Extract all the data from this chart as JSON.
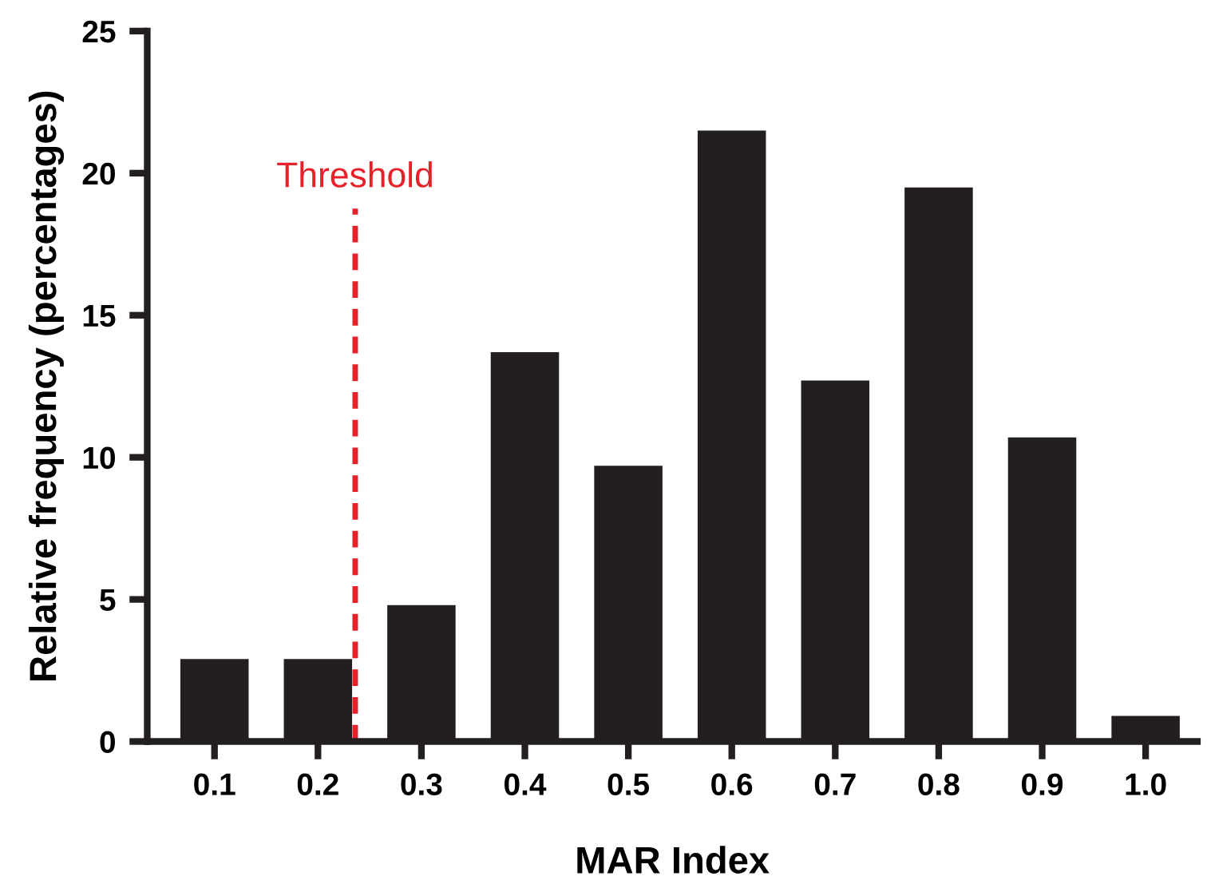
{
  "chart_data": {
    "type": "bar",
    "xlabel": "MAR Index",
    "ylabel": "Relative frequency (percentages)",
    "x": [
      0.1,
      0.2,
      0.3,
      0.4,
      0.5,
      0.6,
      0.7,
      0.8,
      0.9,
      1.0
    ],
    "values": [
      2.9,
      2.9,
      4.8,
      13.7,
      9.7,
      21.5,
      12.7,
      19.5,
      10.7,
      0.9
    ],
    "color": "#231f20",
    "xlim": [
      0.035,
      1.05
    ],
    "xticks": [
      {
        "value": 0.1,
        "label": "0.1"
      },
      {
        "value": 0.2,
        "label": "0.2"
      },
      {
        "value": 0.3,
        "label": "0.3"
      },
      {
        "value": 0.4,
        "label": "0.4"
      },
      {
        "value": 0.5,
        "label": "0.5"
      },
      {
        "value": 0.6,
        "label": "0.6"
      },
      {
        "value": 0.7,
        "label": "0.7"
      },
      {
        "value": 0.8,
        "label": "0.8"
      },
      {
        "value": 0.9,
        "label": "0.9"
      },
      {
        "value": 1.0,
        "label": "1.0"
      }
    ],
    "ylim": [
      0,
      25
    ],
    "yticks": [
      0,
      5,
      10,
      15,
      20,
      25
    ],
    "ref_lines": [
      {
        "axis": "x",
        "value": 0.236,
        "label": "Threshold",
        "color": "#e8202a",
        "line_style": "dashed"
      }
    ],
    "grid": false,
    "legend": false
  }
}
